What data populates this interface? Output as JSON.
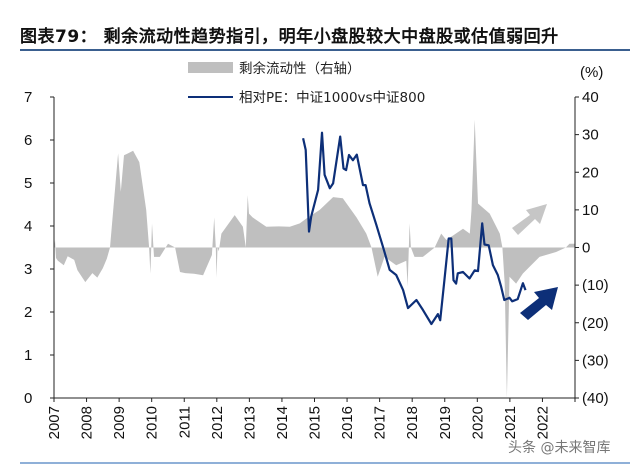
{
  "title": "图表79：  剩余流动性趋势指引，明年小盘股较大中盘股或估值弱回升",
  "watermark": "头条 @未来智库",
  "colors": {
    "area": "#bfbfbf",
    "line": "#0d2f78",
    "rule": "#3a5f8f"
  },
  "annotations": {
    "gray_arrow": "up-right arrow (gray)",
    "blue_arrow": "up-right arrow (navy)"
  },
  "chart_data": {
    "type": "line+area",
    "title": "",
    "unit_right": "(%)",
    "legend_position": "top-center",
    "grid": false,
    "x_ticks": [
      "2007",
      "2008",
      "2009",
      "2010",
      "2011",
      "2012",
      "2013",
      "2014",
      "2015",
      "2016",
      "2017",
      "2018",
      "2019",
      "2020",
      "2021",
      "2022"
    ],
    "xlim": [
      2007,
      2023
    ],
    "left_axis": {
      "ylim": [
        0,
        7
      ],
      "ticks": [
        "0",
        "1",
        "2",
        "3",
        "4",
        "5",
        "6",
        "7"
      ]
    },
    "right_axis": {
      "ylim": [
        -40,
        40
      ],
      "ticks": [
        "(40)",
        "(30)",
        "(20)",
        "(10)",
        "0",
        "10",
        "20",
        "30",
        "40"
      ]
    },
    "series": [
      {
        "name": "剩余流动性（右轴）",
        "type": "area",
        "axis": "right",
        "x": [
          2007.0,
          2007.03,
          2007.06,
          2007.12,
          2007.3,
          2007.42,
          2007.62,
          2007.72,
          2007.96,
          2008.18,
          2008.33,
          2008.5,
          2008.62,
          2008.72,
          2008.97,
          2009.05,
          2009.15,
          2009.43,
          2009.62,
          2009.83,
          2009.92,
          2009.96,
          2010.01,
          2010.07,
          2010.25,
          2010.5,
          2010.72,
          2010.87,
          2011.03,
          2011.3,
          2011.58,
          2011.85,
          2011.92,
          2011.97,
          2011.99,
          2012.02,
          2012.06,
          2012.14,
          2012.55,
          2012.8,
          2012.89,
          2012.95,
          2012.99,
          2013.1,
          2013.52,
          2013.9,
          2014.24,
          2014.55,
          2014.75,
          2015.16,
          2015.57,
          2015.87,
          2016.29,
          2016.59,
          2016.75,
          2016.94,
          2017.15,
          2017.51,
          2017.82,
          2017.86,
          2017.92,
          2017.96,
          2018.07,
          2018.33,
          2018.69,
          2018.89,
          2019.05,
          2019.56,
          2019.77,
          2019.82,
          2019.92,
          2020.02,
          2020.38,
          2020.69,
          2020.77,
          2020.84,
          2020.91,
          2020.99,
          2021.19,
          2021.4,
          2021.91,
          2022.42,
          2022.72,
          2022.83,
          2023.0
        ],
        "values": [
          0,
          2,
          -2.8,
          -3.5,
          -4.7,
          -2.3,
          -3.3,
          -6,
          -9.2,
          -6.8,
          -8,
          -5.5,
          -3,
          0,
          25,
          14.8,
          24.5,
          25.7,
          22.7,
          10,
          0,
          -7,
          6.4,
          -2.5,
          -2.5,
          1,
          0,
          -6.5,
          -6.8,
          -7,
          -7.4,
          -2,
          8,
          0,
          -8,
          0,
          -1,
          3.7,
          8.6,
          5.5,
          0,
          13.9,
          9,
          8,
          5.5,
          5.6,
          5.5,
          6.4,
          7.7,
          10,
          13.4,
          13.1,
          8,
          3.7,
          0,
          -7.8,
          -2.5,
          -4.7,
          -3.5,
          -10.4,
          6.4,
          0,
          -2.5,
          -2.5,
          0,
          3.7,
          2,
          5,
          3.7,
          10,
          34,
          11.7,
          9,
          3.7,
          0,
          -9.6,
          -40,
          -7.8,
          -9.6,
          -6.9,
          -2.5,
          -1.2,
          0,
          1,
          1
        ]
      },
      {
        "name": "相对PE：中证1000vs中证800",
        "type": "line",
        "axis": "left",
        "x": [
          2014.65,
          2014.73,
          2014.83,
          2014.9,
          2015.11,
          2015.23,
          2015.31,
          2015.47,
          2015.57,
          2015.79,
          2015.89,
          2015.97,
          2016.06,
          2016.18,
          2016.3,
          2016.49,
          2016.57,
          2016.69,
          2016.9,
          2017.1,
          2017.31,
          2017.51,
          2017.72,
          2017.87,
          2018.13,
          2018.33,
          2018.59,
          2018.79,
          2018.86,
          2018.99,
          2019.12,
          2019.2,
          2019.27,
          2019.35,
          2019.4,
          2019.56,
          2019.76,
          2019.92,
          2020.02,
          2020.15,
          2020.22,
          2020.35,
          2020.48,
          2020.63,
          2020.73,
          2020.83,
          2020.99,
          2021.07,
          2021.24,
          2021.4,
          2021.48
        ],
        "values": [
          6.04,
          5.77,
          3.87,
          4.22,
          4.84,
          6.17,
          5.19,
          4.88,
          4.99,
          6.08,
          5.34,
          5.3,
          5.65,
          5.53,
          5.66,
          4.95,
          4.95,
          4.53,
          4.02,
          3.52,
          2.98,
          2.86,
          2.51,
          2.09,
          2.28,
          2.05,
          1.72,
          1.95,
          1.81,
          2.74,
          3.71,
          3.71,
          2.74,
          2.66,
          2.9,
          2.93,
          2.78,
          2.97,
          2.95,
          4.06,
          3.57,
          3.55,
          3.09,
          2.86,
          2.59,
          2.28,
          2.33,
          2.25,
          2.3,
          2.67,
          2.51
        ]
      }
    ]
  }
}
